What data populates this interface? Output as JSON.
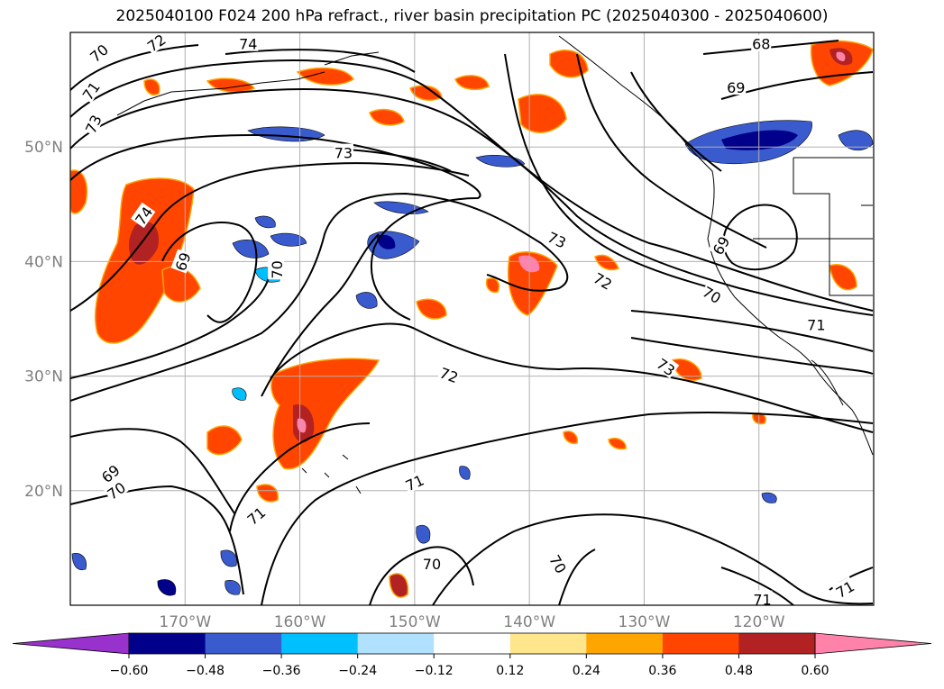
{
  "title": "2025040100 F024 200 hPa refract., river basin precipitation PC (2025040300 - 2025040600)",
  "map": {
    "lon_range": [
      -180,
      -110
    ],
    "lat_range": [
      10,
      60
    ],
    "lat_ticks": [
      {
        "value": 20,
        "label": "20°N"
      },
      {
        "value": 30,
        "label": "30°N"
      },
      {
        "value": 40,
        "label": "40°N"
      },
      {
        "value": 50,
        "label": "50°N"
      }
    ],
    "lon_ticks": [
      {
        "value": -170,
        "label": "170°W"
      },
      {
        "value": -160,
        "label": "160°W"
      },
      {
        "value": -150,
        "label": "150°W"
      },
      {
        "value": -140,
        "label": "140°W"
      },
      {
        "value": -130,
        "label": "130°W"
      },
      {
        "value": -120,
        "label": "120°W"
      }
    ],
    "contour_labels": [
      {
        "text": "70",
        "lon": -177.5,
        "lat": 58.2,
        "rot": -40
      },
      {
        "text": "71",
        "lon": -178.2,
        "lat": 54.9,
        "rot": -55
      },
      {
        "text": "72",
        "lon": -172.5,
        "lat": 59.1,
        "rot": -35
      },
      {
        "text": "73",
        "lon": -178.0,
        "lat": 52.0,
        "rot": -65
      },
      {
        "text": "74",
        "lon": -164.5,
        "lat": 59.0,
        "rot": 0
      },
      {
        "text": "73",
        "lon": -156.2,
        "lat": 49.5,
        "rot": 0
      },
      {
        "text": "74",
        "lon": -173.6,
        "lat": 44.0,
        "rot": -55
      },
      {
        "text": "69",
        "lon": -170.2,
        "lat": 40.0,
        "rot": -70
      },
      {
        "text": "70",
        "lon": -162.0,
        "lat": 39.3,
        "rot": -90
      },
      {
        "text": "73",
        "lon": -137.6,
        "lat": 41.9,
        "rot": 25
      },
      {
        "text": "72",
        "lon": -133.6,
        "lat": 38.3,
        "rot": 30
      },
      {
        "text": "70",
        "lon": -124.1,
        "lat": 37.1,
        "rot": 30
      },
      {
        "text": "69",
        "lon": -123.3,
        "lat": 41.4,
        "rot": -60
      },
      {
        "text": "69",
        "lon": -122.0,
        "lat": 55.2,
        "rot": 0
      },
      {
        "text": "68",
        "lon": -119.8,
        "lat": 59.0,
        "rot": 0
      },
      {
        "text": "71",
        "lon": -115.0,
        "lat": 34.5,
        "rot": 0
      },
      {
        "text": "73",
        "lon": -128.1,
        "lat": 30.8,
        "rot": 35
      },
      {
        "text": "72",
        "lon": -147.0,
        "lat": 30.1,
        "rot": 20
      },
      {
        "text": "71",
        "lon": -150.0,
        "lat": 20.7,
        "rot": -25
      },
      {
        "text": "70",
        "lon": -148.5,
        "lat": 13.6,
        "rot": 0
      },
      {
        "text": "70",
        "lon": -137.5,
        "lat": 13.6,
        "rot": 60
      },
      {
        "text": "71",
        "lon": -163.8,
        "lat": 17.8,
        "rot": -40
      },
      {
        "text": "70",
        "lon": -176.0,
        "lat": 20.0,
        "rot": -35
      },
      {
        "text": "69",
        "lon": -176.5,
        "lat": 21.5,
        "rot": -40
      },
      {
        "text": "71",
        "lon": -119.7,
        "lat": 10.5,
        "rot": 0
      },
      {
        "text": "71",
        "lon": -112.5,
        "lat": 11.4,
        "rot": -30
      }
    ]
  },
  "colorbar": {
    "colors": [
      "#9932cc",
      "#00008b",
      "#3a5bcd",
      "#00bfff",
      "#b0e2ff",
      "#ffffff",
      "#ffe68c",
      "#ffa500",
      "#ff4500",
      "#b22222",
      "#ff82ab"
    ],
    "tick_labels": [
      "−0.60",
      "−0.48",
      "−0.36",
      "−0.24",
      "−0.12",
      "0.12",
      "0.24",
      "0.36",
      "0.48",
      "0.60"
    ]
  }
}
